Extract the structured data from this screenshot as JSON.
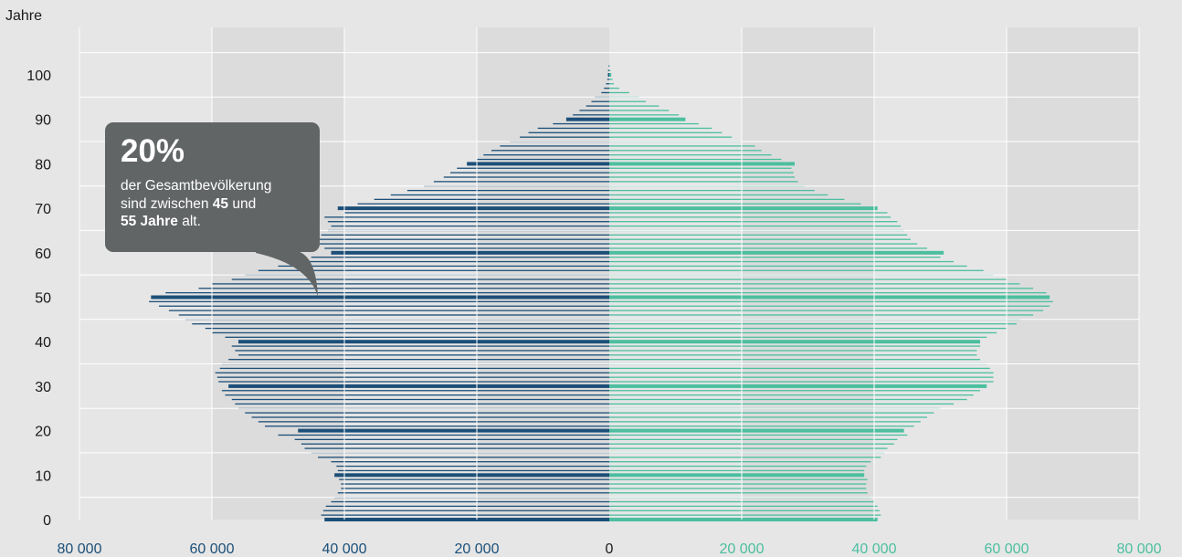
{
  "chart_data": {
    "type": "bar",
    "orientation": "horizontal",
    "ylabel": "Jahre",
    "y_ticks": [
      "0",
      "10",
      "20",
      "30",
      "40",
      "50",
      "60",
      "70",
      "80",
      "90",
      "100"
    ],
    "x_ticks_left": [
      "80 000",
      "60 000",
      "40 000",
      "20 000"
    ],
    "x_tick_zero": "0",
    "x_ticks_right": [
      "20 000",
      "40 000",
      "60 000",
      "80 000"
    ],
    "x_range": [
      -80000,
      80000
    ],
    "y_range": [
      0,
      100
    ],
    "grid": true,
    "colors": {
      "left": "#1c4f78",
      "right": "#4bbf9f",
      "bg_band_light": "#e6e6e6",
      "bg_band_dark": "#dcdcdc",
      "grid": "#ffffff",
      "callout": "#626566"
    },
    "series": [
      {
        "side": "left",
        "ages": [
          0,
          1,
          2,
          3,
          4,
          5,
          6,
          7,
          8,
          9,
          10,
          11,
          12,
          13,
          14,
          15,
          16,
          17,
          18,
          19,
          20,
          21,
          22,
          23,
          24,
          25,
          26,
          27,
          28,
          29,
          30,
          31,
          32,
          33,
          34,
          35,
          36,
          37,
          38,
          39,
          40,
          41,
          42,
          43,
          44,
          45,
          46,
          47,
          48,
          49,
          50,
          51,
          52,
          53,
          54,
          55,
          56,
          57,
          58,
          59,
          60,
          61,
          62,
          63,
          64,
          65,
          66,
          67,
          68,
          69,
          70,
          71,
          72,
          73,
          74,
          75,
          76,
          77,
          78,
          79,
          80,
          81,
          82,
          83,
          84,
          85,
          86,
          87,
          88,
          89,
          90,
          91,
          92,
          93,
          94,
          95,
          96,
          97,
          98,
          99,
          100,
          101,
          102
        ],
        "values": [
          43000,
          43500,
          43200,
          42800,
          42000,
          41500,
          41000,
          40500,
          40500,
          40800,
          41500,
          41000,
          41200,
          42000,
          44000,
          45000,
          46000,
          46500,
          47500,
          50000,
          47000,
          52000,
          53000,
          54000,
          55000,
          56000,
          56500,
          57000,
          58000,
          58500,
          57500,
          59000,
          59200,
          59500,
          58800,
          58500,
          57500,
          56000,
          56500,
          57000,
          56000,
          58000,
          60000,
          61000,
          63000,
          64000,
          65000,
          66500,
          68000,
          69500,
          69200,
          67000,
          62000,
          60000,
          57000,
          55000,
          53000,
          50000,
          47000,
          45000,
          42000,
          43000,
          44000,
          44500,
          43500,
          42500,
          42000,
          42500,
          43000,
          40000,
          41000,
          38000,
          35500,
          33000,
          30500,
          28000,
          26500,
          25000,
          24000,
          23000,
          21500,
          20000,
          19000,
          17800,
          16500,
          15000,
          13500,
          12200,
          10800,
          8500,
          6500,
          5500,
          4500,
          3500,
          2700,
          2200,
          1200,
          800,
          500,
          300,
          200,
          200,
          100
        ]
      },
      {
        "side": "right",
        "ages": [
          0,
          1,
          2,
          3,
          4,
          5,
          6,
          7,
          8,
          9,
          10,
          11,
          12,
          13,
          14,
          15,
          16,
          17,
          18,
          19,
          20,
          21,
          22,
          23,
          24,
          25,
          26,
          27,
          28,
          29,
          30,
          31,
          32,
          33,
          34,
          35,
          36,
          37,
          38,
          39,
          40,
          41,
          42,
          43,
          44,
          45,
          46,
          47,
          48,
          49,
          50,
          51,
          52,
          53,
          54,
          55,
          56,
          57,
          58,
          59,
          60,
          61,
          62,
          63,
          64,
          65,
          66,
          67,
          68,
          69,
          70,
          71,
          72,
          73,
          74,
          75,
          76,
          77,
          78,
          79,
          80,
          81,
          82,
          83,
          84,
          85,
          86,
          87,
          88,
          89,
          90,
          91,
          92,
          93,
          94,
          95,
          96,
          97,
          98,
          99,
          100,
          101,
          102
        ],
        "values": [
          40500,
          41000,
          40800,
          40500,
          40000,
          39500,
          39000,
          38800,
          38800,
          39000,
          38500,
          38500,
          38800,
          39500,
          41000,
          41500,
          42000,
          43000,
          43500,
          45000,
          44500,
          46000,
          47000,
          48000,
          49000,
          50000,
          52000,
          54000,
          55000,
          56000,
          57000,
          58000,
          58000,
          58000,
          57500,
          57000,
          56000,
          55500,
          55500,
          56000,
          56000,
          57000,
          58500,
          60000,
          61500,
          62000,
          64000,
          65500,
          66500,
          67000,
          66500,
          66000,
          64000,
          62000,
          60000,
          58000,
          56500,
          54000,
          52000,
          50000,
          50500,
          48000,
          46500,
          45500,
          45000,
          44500,
          44000,
          43500,
          42500,
          42000,
          40500,
          38000,
          35500,
          33000,
          31000,
          29500,
          28500,
          28000,
          27800,
          27500,
          28000,
          26000,
          24500,
          23000,
          22000,
          20000,
          18500,
          17000,
          15500,
          13500,
          11500,
          10500,
          9000,
          7500,
          5500,
          4500,
          3000,
          1500,
          700,
          500,
          300,
          200,
          100
        ]
      }
    ],
    "highlighted_ages": [
      0,
      10,
      20,
      30,
      40,
      50,
      60,
      70,
      80,
      90,
      100
    ],
    "annotation": {
      "percent": "20%",
      "line1": "der Gesamtbevölkerung",
      "line2_a": "sind zwischen ",
      "line2_b": "45",
      "line2_c": " und",
      "line3_a": "55 Jahre",
      "line3_b": " alt."
    }
  }
}
